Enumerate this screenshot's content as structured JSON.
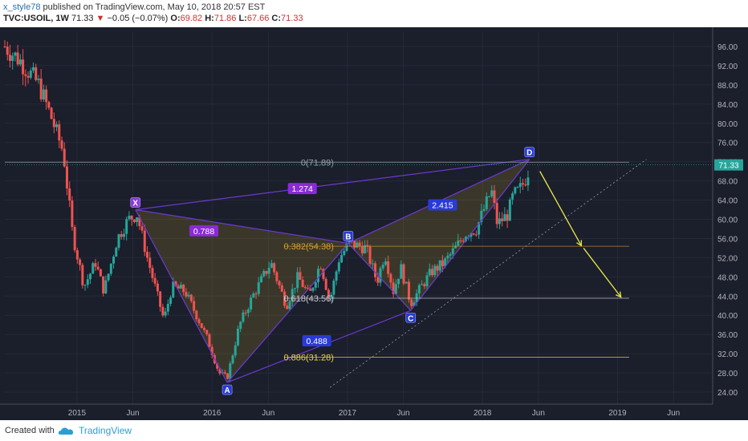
{
  "header": {
    "author": "x_style78",
    "published": "published on TradingView.com, May 10, 2018 20:57 EST",
    "symbol": "TVC:USOIL, 1W",
    "last": "71.33",
    "change": "−0.05 (−0.07%)",
    "o_label": "O:",
    "o": "69.82",
    "h_label": "H:",
    "h": "71.86",
    "l_label": "L:",
    "l": "67.66",
    "c_label": "C:",
    "c": "71.33"
  },
  "footer": {
    "created_with": "Created with",
    "brand": "TradingView"
  },
  "colors": {
    "up": "#26a69a",
    "down": "#ef5350",
    "pattern": "#6a3ad0",
    "fib": "#d6a030",
    "arrow": "#e8e84a",
    "bg": "#1b1e2b"
  },
  "chart_data": {
    "type": "candlestick",
    "y_ticks": [
      24,
      28,
      32,
      36,
      40,
      44,
      48,
      52,
      56,
      60,
      64,
      68,
      72,
      76,
      80,
      84,
      88,
      92,
      96
    ],
    "y_tick_labels": [
      "24.00",
      "28.00",
      "32.00",
      "36.00",
      "40.00",
      "44.00",
      "48.00",
      "52.00",
      "56.00",
      "60.00",
      "64.00",
      "68.00",
      "72.00",
      "76.00",
      "80.00",
      "84.00",
      "88.00",
      "92.00",
      "96.00"
    ],
    "ylim": [
      21.5,
      99
    ],
    "xlim": [
      "2014-06-20",
      "2019-09-15"
    ],
    "x_ticks": [
      {
        "date": "2015-01-01",
        "label": "2015"
      },
      {
        "date": "2015-06-01",
        "label": "Jun"
      },
      {
        "date": "2016-01-01",
        "label": "2016"
      },
      {
        "date": "2016-06-01",
        "label": "Jun"
      },
      {
        "date": "2017-01-01",
        "label": "2017"
      },
      {
        "date": "2017-06-01",
        "label": "Jun"
      },
      {
        "date": "2018-01-01",
        "label": "2018"
      },
      {
        "date": "2018-06-01",
        "label": "Jun"
      },
      {
        "date": "2019-01-01",
        "label": "2019"
      },
      {
        "date": "2019-06-01",
        "label": "Jun"
      }
    ],
    "anchors": [
      {
        "date": "2014-06-20",
        "price": 96
      },
      {
        "date": "2014-08-01",
        "price": 93
      },
      {
        "date": "2014-09-20",
        "price": 88
      },
      {
        "date": "2014-10-20",
        "price": 82
      },
      {
        "date": "2014-11-25",
        "price": 74
      },
      {
        "date": "2014-12-20",
        "price": 57
      },
      {
        "date": "2015-01-20",
        "price": 46
      },
      {
        "date": "2015-02-20",
        "price": 51
      },
      {
        "date": "2015-03-15",
        "price": 45
      },
      {
        "date": "2015-04-20",
        "price": 56
      },
      {
        "date": "2015-05-20",
        "price": 60
      },
      {
        "date": "2015-06-12",
        "price": 61
      },
      {
        "date": "2015-07-10",
        "price": 52
      },
      {
        "date": "2015-08-24",
        "price": 39
      },
      {
        "date": "2015-09-15",
        "price": 46
      },
      {
        "date": "2015-10-20",
        "price": 45
      },
      {
        "date": "2015-11-20",
        "price": 40
      },
      {
        "date": "2015-12-20",
        "price": 35
      },
      {
        "date": "2016-01-20",
        "price": 28
      },
      {
        "date": "2016-02-11",
        "price": 27
      },
      {
        "date": "2016-03-15",
        "price": 38
      },
      {
        "date": "2016-04-20",
        "price": 44
      },
      {
        "date": "2016-06-08",
        "price": 51
      },
      {
        "date": "2016-07-20",
        "price": 42
      },
      {
        "date": "2016-08-20",
        "price": 48
      },
      {
        "date": "2016-09-20",
        "price": 44
      },
      {
        "date": "2016-10-20",
        "price": 51
      },
      {
        "date": "2016-11-14",
        "price": 43
      },
      {
        "date": "2016-12-10",
        "price": 52
      },
      {
        "date": "2017-01-06",
        "price": 55
      },
      {
        "date": "2017-02-20",
        "price": 54
      },
      {
        "date": "2017-03-22",
        "price": 47
      },
      {
        "date": "2017-04-12",
        "price": 53
      },
      {
        "date": "2017-05-05",
        "price": 45
      },
      {
        "date": "2017-05-25",
        "price": 50
      },
      {
        "date": "2017-06-21",
        "price": 42.5
      },
      {
        "date": "2017-07-20",
        "price": 46
      },
      {
        "date": "2017-08-15",
        "price": 49
      },
      {
        "date": "2017-09-20",
        "price": 51
      },
      {
        "date": "2017-10-20",
        "price": 54
      },
      {
        "date": "2017-11-15",
        "price": 57
      },
      {
        "date": "2017-12-15",
        "price": 58
      },
      {
        "date": "2018-01-25",
        "price": 66
      },
      {
        "date": "2018-02-10",
        "price": 59
      },
      {
        "date": "2018-03-10",
        "price": 61
      },
      {
        "date": "2018-03-25",
        "price": 65
      },
      {
        "date": "2018-04-10",
        "price": 66
      },
      {
        "date": "2018-04-25",
        "price": 68
      },
      {
        "date": "2018-05-10",
        "price": 71.33
      }
    ],
    "pattern": {
      "points": [
        {
          "label": "X",
          "date": "2015-06-08",
          "price": 62
        },
        {
          "label": "A",
          "date": "2016-02-11",
          "price": 26
        },
        {
          "label": "B",
          "date": "2017-01-03",
          "price": 55
        },
        {
          "label": "C",
          "date": "2017-06-21",
          "price": 41
        },
        {
          "label": "D",
          "date": "2018-05-08",
          "price": 72.5
        }
      ],
      "ratios": [
        {
          "text": "1.274",
          "date": "2016-09-01",
          "price": 66.4
        },
        {
          "text": "0.788",
          "date": "2015-12-10",
          "price": 57.6
        },
        {
          "text": "2.415",
          "date": "2017-09-15",
          "price": 63
        },
        {
          "text": "0.488",
          "date": "2016-10-10",
          "price": 34.7
        }
      ]
    },
    "fib_levels": [
      {
        "text": "0(71.89)",
        "price": 71.89,
        "color": "#9aa0ab"
      },
      {
        "text": "0.382(54.38)",
        "price": 54.38,
        "color": "#d6a030"
      },
      {
        "text": "0.618(43.56)",
        "price": 43.56,
        "color": "#c8cad0"
      },
      {
        "text": "0.886(31.28)",
        "price": 31.28,
        "color": "#e6d44a"
      }
    ],
    "last_price": "71.33"
  }
}
